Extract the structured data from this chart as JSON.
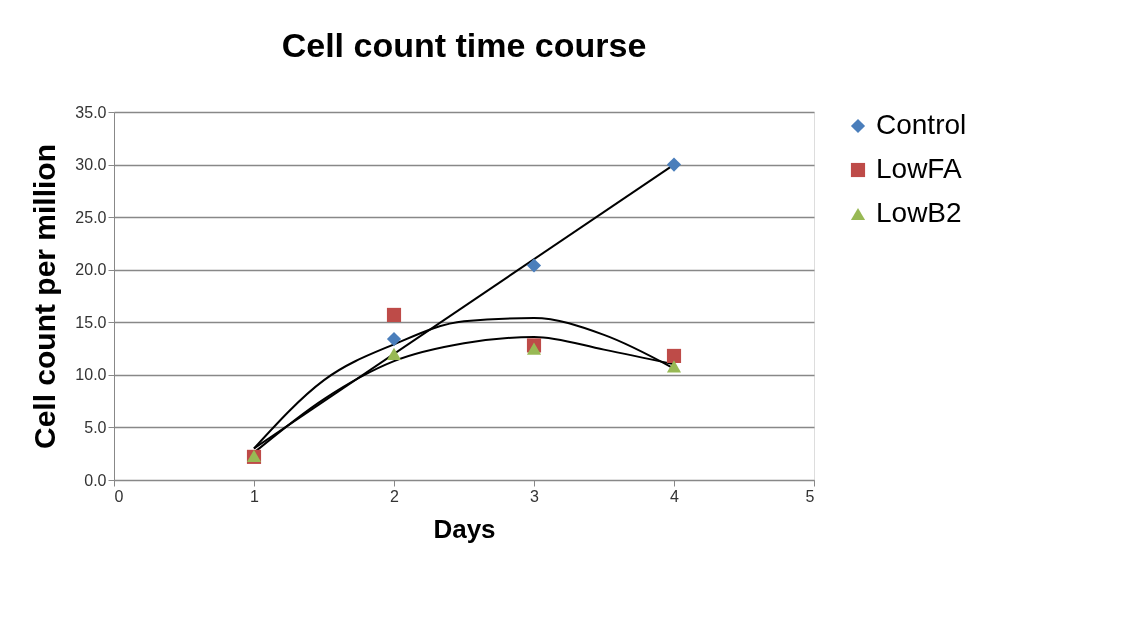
{
  "chart_data": {
    "type": "scatter",
    "title": "Cell count time course",
    "xlabel": "Days",
    "ylabel": "Cell count per million",
    "x": [
      1,
      2,
      3,
      4
    ],
    "series": [
      {
        "name": "Control",
        "color": "#4a7ebb",
        "marker": "diamond",
        "values": [
          null,
          13.4,
          20.4,
          30.0
        ]
      },
      {
        "name": "LowFA",
        "color": "#be4b48",
        "marker": "square",
        "values": [
          2.2,
          15.7,
          12.8,
          11.8
        ]
      },
      {
        "name": "LowB2",
        "color": "#98b954",
        "marker": "triangle",
        "values": [
          2.3,
          12.0,
          12.5,
          10.8
        ]
      },
      {
        "type": "line",
        "color": "#000000",
        "x": [
          1,
          4
        ],
        "values": [
          3.0,
          30.0
        ]
      },
      {
        "type": "line",
        "color": "#000000",
        "x": [
          1,
          1.5,
          2,
          2.5,
          3,
          3.5,
          4
        ],
        "values": [
          3.0,
          9.5,
          12.9,
          15.1,
          15.4,
          13.8,
          10.6
        ]
      },
      {
        "type": "line",
        "color": "#000000",
        "x": [
          1,
          1.5,
          2,
          2.5,
          3,
          3.5,
          4
        ],
        "values": [
          2.6,
          7.7,
          11.3,
          13.0,
          13.6,
          12.4,
          11.0
        ]
      }
    ],
    "xlim": [
      0,
      5
    ],
    "xticks": [
      0,
      1,
      2,
      3,
      4,
      5
    ],
    "ylim": [
      0,
      35
    ],
    "yticks": [
      {
        "value": 0,
        "label": "0.0"
      },
      {
        "value": 5,
        "label": "5.0"
      },
      {
        "value": 10,
        "label": "10.0"
      },
      {
        "value": 15,
        "label": "15.0"
      },
      {
        "value": 20,
        "label": "20.0"
      },
      {
        "value": 25,
        "label": "25.0"
      },
      {
        "value": 30,
        "label": "30.0"
      },
      {
        "value": 35,
        "label": "35.0"
      }
    ],
    "grid": "y",
    "legend": "right"
  }
}
